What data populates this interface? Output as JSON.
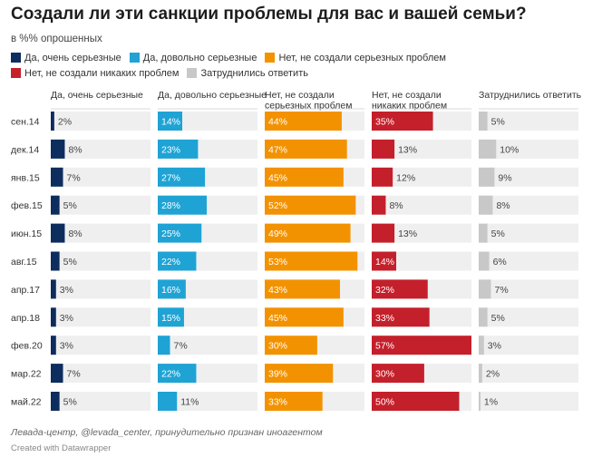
{
  "title": "Создали ли эти санкции проблемы для вас и вашей семьи?",
  "subtitle": "в %% опрошенных",
  "legend": [
    {
      "label": "Да, очень серьезные",
      "color": "#0d2d5e"
    },
    {
      "label": "Да, довольно серьезные",
      "color": "#1fa3d4"
    },
    {
      "label": "Нет, не создали серьезных проблем",
      "color": "#f39200"
    },
    {
      "label": "Нет, не создали никаких проблем",
      "color": "#c4202b"
    },
    {
      "label": "Затруднились ответить",
      "color": "#c8c8c8"
    }
  ],
  "footer": {
    "source": "Левада-центр, @levada_center, принудительно признан иноагентом",
    "credit": "Created with Datawrapper"
  },
  "chart_data": {
    "type": "bar",
    "layout": "small-multiples",
    "categories": [
      "сен.14",
      "дек.14",
      "янв.15",
      "фев.15",
      "июн.15",
      "авг.15",
      "апр.17",
      "апр.18",
      "фев.20",
      "мар.22",
      "май.22"
    ],
    "value_suffix": "%",
    "series": [
      {
        "name": "Да, очень серьезные",
        "header": "Да, очень серьезные",
        "color": "#0d2d5e",
        "values": [
          2,
          8,
          7,
          5,
          8,
          5,
          3,
          3,
          3,
          7,
          5
        ]
      },
      {
        "name": "Да, довольно серьезные",
        "header": "Да, довольно серьезные",
        "color": "#1fa3d4",
        "values": [
          14,
          23,
          27,
          28,
          25,
          22,
          16,
          15,
          7,
          22,
          11
        ]
      },
      {
        "name": "Нет, не создали серьезных проблем",
        "header": "Нет, не создали серьезных проблем",
        "color": "#f39200",
        "values": [
          44,
          47,
          45,
          52,
          49,
          53,
          43,
          45,
          30,
          39,
          33
        ]
      },
      {
        "name": "Нет, не создали никаких проблем",
        "header": "Нет, не создали никаких проблем",
        "color": "#c4202b",
        "values": [
          35,
          13,
          12,
          8,
          13,
          14,
          32,
          33,
          57,
          30,
          50
        ]
      },
      {
        "name": "Затруднились ответить",
        "header": "Затруднились ответить",
        "color": "#c8c8c8",
        "values": [
          5,
          10,
          9,
          8,
          5,
          6,
          7,
          5,
          3,
          2,
          1
        ]
      }
    ]
  }
}
